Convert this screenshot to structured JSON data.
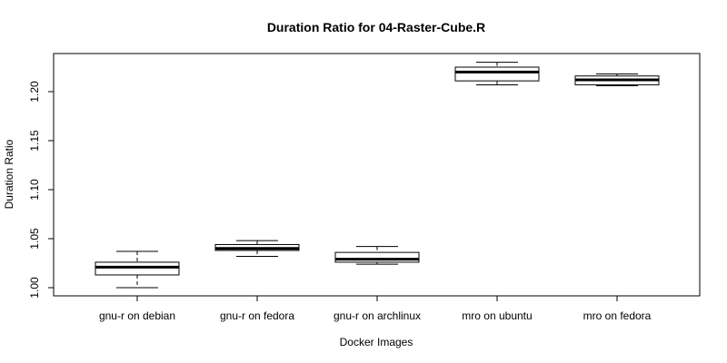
{
  "chart_data": {
    "type": "boxplot",
    "title": "Duration Ratio for 04-Raster-Cube.R",
    "xlabel": "Docker Images",
    "ylabel": "Duration Ratio",
    "ylim": [
      0.99,
      1.24
    ],
    "yticks": [
      1.0,
      1.05,
      1.1,
      1.15,
      1.2
    ],
    "ytick_labels": [
      "1.00",
      "1.05",
      "1.10",
      "1.15",
      "1.20"
    ],
    "categories": [
      "gnu-r on debian",
      "gnu-r on fedora",
      "gnu-r on archlinux",
      "mro on ubuntu",
      "mro on fedora"
    ],
    "boxes": [
      {
        "category": "gnu-r on debian",
        "min": 1.0,
        "q1": 1.013,
        "median": 1.021,
        "q3": 1.026,
        "max": 1.037
      },
      {
        "category": "gnu-r on fedora",
        "min": 1.032,
        "q1": 1.038,
        "median": 1.04,
        "q3": 1.044,
        "max": 1.048
      },
      {
        "category": "gnu-r on archlinux",
        "min": 1.024,
        "q1": 1.026,
        "median": 1.029,
        "q3": 1.036,
        "max": 1.042
      },
      {
        "category": "mro on ubuntu",
        "min": 1.207,
        "q1": 1.211,
        "median": 1.22,
        "q3": 1.225,
        "max": 1.23
      },
      {
        "category": "mro on fedora",
        "min": 1.206,
        "q1": 1.207,
        "median": 1.212,
        "q3": 1.216,
        "max": 1.218
      }
    ],
    "grid": false,
    "legend": "none"
  }
}
